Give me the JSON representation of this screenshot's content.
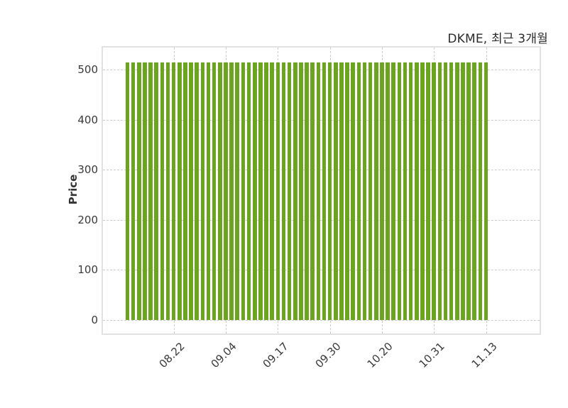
{
  "figure": {
    "title": "DKME, 최근 3개월"
  },
  "colors": {
    "bar": "#6BA51F",
    "grid": "#cccccc",
    "plot_border": "#e2e2e2",
    "tick_text": "#3a3a3a",
    "title_text": "#2b2b2b",
    "background": "#ffffff"
  },
  "chart_data": {
    "type": "bar",
    "title": "DKME, 최근 3개월",
    "xlabel": "",
    "ylabel": "Price",
    "y_ticks": [
      0,
      100,
      200,
      300,
      400,
      500
    ],
    "ylim": [
      -30,
      548
    ],
    "grid": "dashed horizontal and vertical",
    "legend": "none",
    "bar_count": 63,
    "x_ticks": [
      {
        "index": 8,
        "label": "08.22"
      },
      {
        "index": 17,
        "label": "09.04"
      },
      {
        "index": 26,
        "label": "09.17"
      },
      {
        "index": 35,
        "label": "09.30"
      },
      {
        "index": 44,
        "label": "10.20"
      },
      {
        "index": 53,
        "label": "10.31"
      },
      {
        "index": 62,
        "label": "11.13"
      }
    ],
    "series": [
      {
        "name": "Price",
        "values": [
          515,
          515,
          515,
          515,
          515,
          515,
          515,
          515,
          515,
          515,
          515,
          515,
          515,
          515,
          515,
          515,
          515,
          515,
          515,
          515,
          515,
          515,
          515,
          515,
          515,
          515,
          515,
          515,
          515,
          515,
          515,
          515,
          515,
          515,
          515,
          515,
          515,
          515,
          515,
          515,
          515,
          515,
          515,
          515,
          515,
          515,
          515,
          515,
          515,
          515,
          515,
          515,
          515,
          515,
          515,
          515,
          515,
          515,
          515,
          515,
          515,
          515,
          515
        ]
      }
    ]
  }
}
